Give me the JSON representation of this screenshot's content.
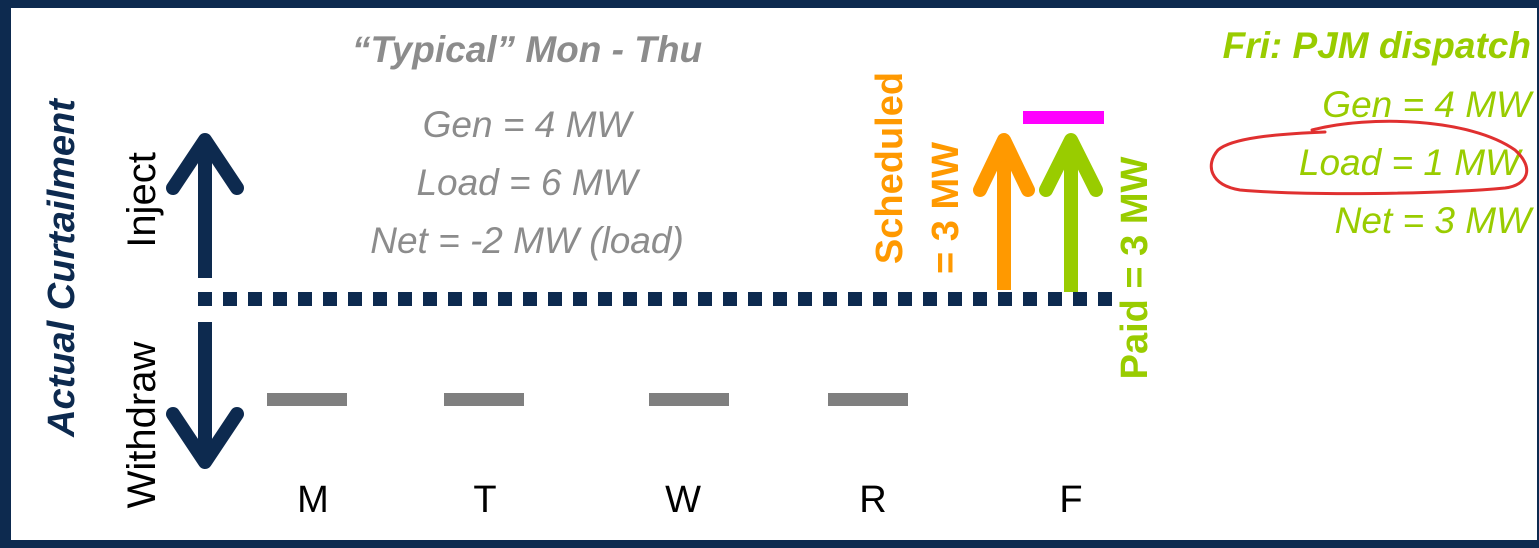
{
  "y_axis_title": "Actual Curtailment",
  "direction_up_label": "Inject",
  "direction_down_label": "Withdraw",
  "days": [
    "M",
    "T",
    "W",
    "R",
    "F"
  ],
  "typical": {
    "title": "“Typical” Mon - Thu",
    "gen": "Gen = 4 MW",
    "load": "Load = 6 MW",
    "net": "Net = -2 MW (load)"
  },
  "friday": {
    "title": "Fri: PJM dispatch",
    "gen": "Gen = 4 MW",
    "load": "Load = 1 MW",
    "net": "Net = 3 MW"
  },
  "scheduled": {
    "line1": "Scheduled",
    "line2": "= 3 MW"
  },
  "paid": {
    "label": "Paid = 3 MW"
  },
  "colors": {
    "navy": "#0d2a4f",
    "gray": "#7f7f7f",
    "orange": "#ff9900",
    "green": "#99cc00",
    "magenta": "#ff00ff",
    "red_annotation": "#e03030"
  }
}
